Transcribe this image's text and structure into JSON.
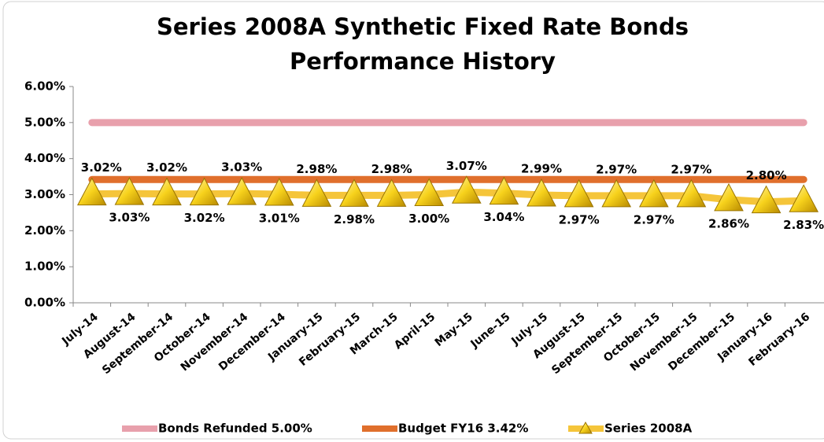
{
  "chart_data": {
    "type": "line",
    "title": "Series 2008A Synthetic Fixed Rate Bonds",
    "subtitle": "Performance History",
    "categories": [
      "July-14",
      "August-14",
      "September-14",
      "October-14",
      "November-14",
      "December-14",
      "January-15",
      "February-15",
      "March-15",
      "April-15",
      "May-15",
      "June-15",
      "July-15",
      "August-15",
      "September-15",
      "October-15",
      "November-15",
      "December-15",
      "January-16",
      "February-16"
    ],
    "series": [
      {
        "name": "Bonds Refunded 5.00%",
        "color": "#e8a0ac",
        "values": [
          5,
          5,
          5,
          5,
          5,
          5,
          5,
          5,
          5,
          5,
          5,
          5,
          5,
          5,
          5,
          5,
          5,
          5,
          5,
          5
        ]
      },
      {
        "name": "Budget FY16 3.42%",
        "color": "#e06f2c",
        "values": [
          3.42,
          3.42,
          3.42,
          3.42,
          3.42,
          3.42,
          3.42,
          3.42,
          3.42,
          3.42,
          3.42,
          3.42,
          3.42,
          3.42,
          3.42,
          3.42,
          3.42,
          3.42,
          3.42,
          3.42
        ]
      },
      {
        "name": "Series 2008A",
        "color": "#f5c53a",
        "values": [
          3.02,
          3.03,
          3.02,
          3.02,
          3.03,
          3.01,
          2.98,
          2.98,
          2.98,
          3.0,
          3.07,
          3.04,
          2.99,
          2.97,
          2.97,
          2.97,
          2.97,
          2.86,
          2.8,
          2.83
        ],
        "value_labels": [
          "3.02%",
          "3.03%",
          "3.02%",
          "3.02%",
          "3.03%",
          "3.01%",
          "2.98%",
          "2.98%",
          "2.98%",
          "3.00%",
          "3.07%",
          "3.04%",
          "2.99%",
          "2.97%",
          "2.97%",
          "2.97%",
          "2.97%",
          "2.86%",
          "2.80%",
          "2.83%"
        ]
      }
    ],
    "ylim": [
      0,
      6
    ],
    "yticks": [
      {
        "value": 0,
        "label": "0.00%"
      },
      {
        "value": 1,
        "label": "1.00%"
      },
      {
        "value": 2,
        "label": "2.00%"
      },
      {
        "value": 3,
        "label": "3.00%"
      },
      {
        "value": 4,
        "label": "4.00%"
      },
      {
        "value": 5,
        "label": "5.00%"
      },
      {
        "value": 6,
        "label": "6.00%"
      }
    ],
    "legend": "bottom"
  }
}
